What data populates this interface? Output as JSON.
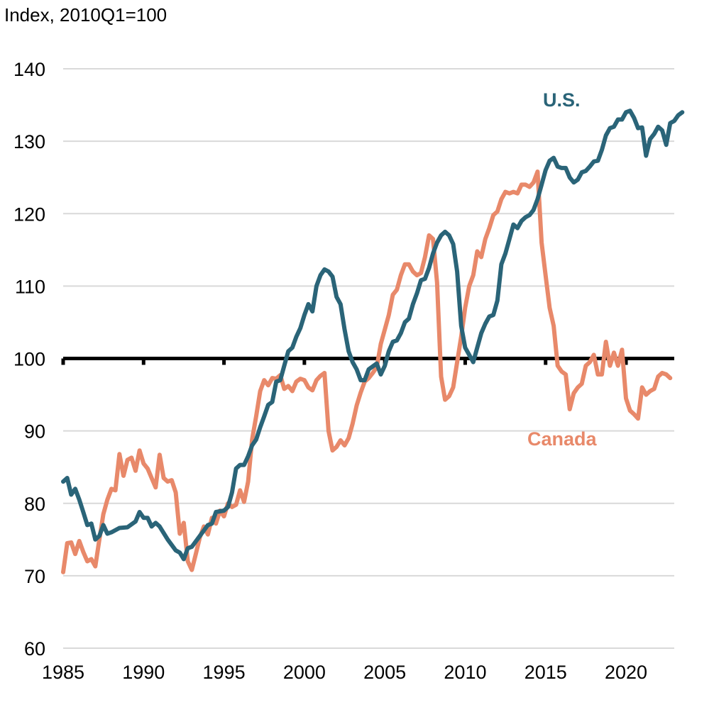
{
  "chart_data": {
    "type": "line",
    "unit_label": "Index, 2010Q1=100",
    "reference_line": 100,
    "xlim": [
      1985,
      2023
    ],
    "ylim": [
      60,
      140
    ],
    "y_ticks": [
      60,
      70,
      80,
      90,
      100,
      110,
      120,
      130,
      140
    ],
    "x_ticks": [
      1985,
      1990,
      1995,
      2000,
      2005,
      2010,
      2015,
      2020
    ],
    "y_tick_labels": [
      "60",
      "70",
      "80",
      "90",
      "100",
      "110",
      "120",
      "130",
      "140"
    ],
    "x_tick_labels": [
      "1985",
      "1990",
      "1995",
      "2000",
      "2005",
      "2010",
      "2015",
      "2020"
    ],
    "grid": "horizontal",
    "series": [
      {
        "name": "U.S.",
        "color": "#2a6478",
        "points": [
          [
            1985.0,
            83.0
          ],
          [
            1985.25,
            83.5
          ],
          [
            1985.5,
            81.2
          ],
          [
            1985.75,
            82.0
          ],
          [
            1986.0,
            80.5
          ],
          [
            1986.25,
            78.8
          ],
          [
            1986.5,
            77.0
          ],
          [
            1986.75,
            77.2
          ],
          [
            1987.0,
            75.0
          ],
          [
            1987.25,
            75.5
          ],
          [
            1987.5,
            77.0
          ],
          [
            1987.75,
            75.8
          ],
          [
            1988.0,
            76.0
          ],
          [
            1988.5,
            76.6
          ],
          [
            1989.0,
            76.7
          ],
          [
            1989.5,
            77.5
          ],
          [
            1989.75,
            78.8
          ],
          [
            1990.0,
            78.0
          ],
          [
            1990.25,
            78.0
          ],
          [
            1990.5,
            76.8
          ],
          [
            1990.75,
            77.3
          ],
          [
            1991.0,
            76.8
          ],
          [
            1991.5,
            75.0
          ],
          [
            1992.0,
            73.5
          ],
          [
            1992.25,
            73.2
          ],
          [
            1992.5,
            72.3
          ],
          [
            1992.75,
            73.8
          ],
          [
            1993.0,
            74.0
          ],
          [
            1993.5,
            75.5
          ],
          [
            1994.0,
            77.0
          ],
          [
            1994.25,
            77.2
          ],
          [
            1994.5,
            78.8
          ],
          [
            1995.0,
            79.0
          ],
          [
            1995.25,
            79.5
          ],
          [
            1995.5,
            81.5
          ],
          [
            1995.75,
            84.8
          ],
          [
            1996.0,
            85.3
          ],
          [
            1996.25,
            85.3
          ],
          [
            1996.5,
            86.5
          ],
          [
            1996.75,
            88.0
          ],
          [
            1997.0,
            88.8
          ],
          [
            1997.25,
            90.5
          ],
          [
            1997.5,
            92.0
          ],
          [
            1997.75,
            93.6
          ],
          [
            1998.0,
            94.0
          ],
          [
            1998.25,
            96.8
          ],
          [
            1998.5,
            97.0
          ],
          [
            1998.75,
            99.0
          ],
          [
            1999.0,
            101.0
          ],
          [
            1999.25,
            101.5
          ],
          [
            1999.5,
            103.0
          ],
          [
            1999.75,
            104.2
          ],
          [
            2000.0,
            106.0
          ],
          [
            2000.25,
            107.5
          ],
          [
            2000.5,
            106.5
          ],
          [
            2000.75,
            110.0
          ],
          [
            2001.0,
            111.5
          ],
          [
            2001.25,
            112.3
          ],
          [
            2001.5,
            112.0
          ],
          [
            2001.75,
            111.3
          ],
          [
            2002.0,
            108.5
          ],
          [
            2002.25,
            107.5
          ],
          [
            2002.5,
            104.0
          ],
          [
            2002.75,
            101.0
          ],
          [
            2003.0,
            99.5
          ],
          [
            2003.25,
            98.5
          ],
          [
            2003.5,
            97.0
          ],
          [
            2003.75,
            97.0
          ],
          [
            2004.0,
            98.5
          ],
          [
            2004.5,
            99.3
          ],
          [
            2004.75,
            97.8
          ],
          [
            2005.0,
            99.0
          ],
          [
            2005.25,
            101.0
          ],
          [
            2005.5,
            102.3
          ],
          [
            2005.75,
            102.5
          ],
          [
            2006.0,
            103.5
          ],
          [
            2006.25,
            105.0
          ],
          [
            2006.5,
            105.5
          ],
          [
            2006.75,
            107.5
          ],
          [
            2007.0,
            109.0
          ],
          [
            2007.25,
            110.8
          ],
          [
            2007.5,
            111.0
          ],
          [
            2007.75,
            112.5
          ],
          [
            2008.0,
            114.5
          ],
          [
            2008.25,
            116.0
          ],
          [
            2008.5,
            117.0
          ],
          [
            2008.75,
            117.5
          ],
          [
            2009.0,
            117.0
          ],
          [
            2009.25,
            115.8
          ],
          [
            2009.5,
            112.0
          ],
          [
            2009.75,
            104.5
          ],
          [
            2010.0,
            101.5
          ],
          [
            2010.25,
            100.5
          ],
          [
            2010.5,
            99.5
          ],
          [
            2010.75,
            101.5
          ],
          [
            2011.0,
            103.5
          ],
          [
            2011.25,
            104.8
          ],
          [
            2011.5,
            105.8
          ],
          [
            2011.75,
            106.0
          ],
          [
            2012.0,
            108.0
          ],
          [
            2012.25,
            113.0
          ],
          [
            2012.5,
            114.5
          ],
          [
            2012.75,
            116.5
          ],
          [
            2013.0,
            118.5
          ],
          [
            2013.25,
            118.0
          ],
          [
            2013.5,
            119.0
          ],
          [
            2013.75,
            119.5
          ],
          [
            2014.0,
            119.8
          ],
          [
            2014.25,
            120.5
          ],
          [
            2014.5,
            122.0
          ],
          [
            2014.75,
            124.0
          ],
          [
            2015.0,
            126.0
          ],
          [
            2015.25,
            127.3
          ],
          [
            2015.5,
            127.7
          ],
          [
            2015.75,
            126.5
          ],
          [
            2016.0,
            126.3
          ],
          [
            2016.25,
            126.3
          ],
          [
            2016.5,
            125.0
          ],
          [
            2016.75,
            124.3
          ],
          [
            2017.0,
            124.7
          ],
          [
            2017.25,
            125.7
          ],
          [
            2017.5,
            125.9
          ],
          [
            2017.75,
            126.5
          ],
          [
            2018.0,
            127.2
          ],
          [
            2018.25,
            127.3
          ],
          [
            2018.5,
            128.8
          ],
          [
            2018.75,
            130.8
          ],
          [
            2019.0,
            131.8
          ],
          [
            2019.25,
            132.0
          ],
          [
            2019.5,
            133.0
          ],
          [
            2019.75,
            133.0
          ],
          [
            2020.0,
            134.0
          ],
          [
            2020.25,
            134.2
          ],
          [
            2020.5,
            133.2
          ],
          [
            2020.75,
            131.8
          ],
          [
            2021.0,
            131.9
          ],
          [
            2021.25,
            128.0
          ],
          [
            2021.5,
            130.3
          ],
          [
            2021.75,
            131.0
          ],
          [
            2022.0,
            132.0
          ],
          [
            2022.25,
            131.5
          ],
          [
            2022.5,
            129.5
          ],
          [
            2022.75,
            132.5
          ],
          [
            2023.0,
            132.8
          ],
          [
            2023.25,
            133.6
          ],
          [
            2023.5,
            134.0
          ]
        ]
      },
      {
        "name": "Canada",
        "color": "#e8896a",
        "points": [
          [
            1985.0,
            70.5
          ],
          [
            1985.25,
            74.5
          ],
          [
            1985.5,
            74.6
          ],
          [
            1985.75,
            73.0
          ],
          [
            1986.0,
            74.8
          ],
          [
            1986.25,
            73.3
          ],
          [
            1986.5,
            72.0
          ],
          [
            1986.75,
            72.3
          ],
          [
            1987.0,
            71.3
          ],
          [
            1987.25,
            75.0
          ],
          [
            1987.5,
            78.5
          ],
          [
            1987.75,
            80.5
          ],
          [
            1988.0,
            82.0
          ],
          [
            1988.25,
            81.8
          ],
          [
            1988.5,
            86.8
          ],
          [
            1988.75,
            83.8
          ],
          [
            1989.0,
            86.0
          ],
          [
            1989.25,
            86.3
          ],
          [
            1989.5,
            84.5
          ],
          [
            1989.75,
            87.3
          ],
          [
            1990.0,
            85.5
          ],
          [
            1990.25,
            84.8
          ],
          [
            1990.5,
            83.5
          ],
          [
            1990.75,
            82.2
          ],
          [
            1991.0,
            86.7
          ],
          [
            1991.25,
            83.5
          ],
          [
            1991.5,
            83.0
          ],
          [
            1991.75,
            83.2
          ],
          [
            1992.0,
            81.5
          ],
          [
            1992.25,
            75.8
          ],
          [
            1992.5,
            77.3
          ],
          [
            1992.75,
            72.0
          ],
          [
            1993.0,
            70.8
          ],
          [
            1993.25,
            73.0
          ],
          [
            1993.5,
            75.3
          ],
          [
            1993.75,
            76.8
          ],
          [
            1994.0,
            75.7
          ],
          [
            1994.25,
            78.0
          ],
          [
            1994.5,
            77.2
          ],
          [
            1994.75,
            79.0
          ],
          [
            1995.0,
            78.2
          ],
          [
            1995.25,
            80.0
          ],
          [
            1995.5,
            79.5
          ],
          [
            1995.75,
            79.8
          ],
          [
            1996.0,
            81.8
          ],
          [
            1996.25,
            80.2
          ],
          [
            1996.5,
            83.0
          ],
          [
            1996.75,
            88.8
          ],
          [
            1997.0,
            92.0
          ],
          [
            1997.25,
            95.5
          ],
          [
            1997.5,
            97.0
          ],
          [
            1997.75,
            96.3
          ],
          [
            1998.0,
            97.3
          ],
          [
            1998.25,
            97.2
          ],
          [
            1998.5,
            97.7
          ],
          [
            1998.75,
            95.8
          ],
          [
            1999.0,
            96.2
          ],
          [
            1999.25,
            95.5
          ],
          [
            1999.5,
            96.8
          ],
          [
            1999.75,
            97.2
          ],
          [
            2000.0,
            97.0
          ],
          [
            2000.25,
            96.0
          ],
          [
            2000.5,
            95.6
          ],
          [
            2000.75,
            97.0
          ],
          [
            2001.0,
            97.6
          ],
          [
            2001.25,
            98.0
          ],
          [
            2001.5,
            90.0
          ],
          [
            2001.75,
            87.3
          ],
          [
            2002.0,
            87.8
          ],
          [
            2002.25,
            88.7
          ],
          [
            2002.5,
            88.0
          ],
          [
            2002.75,
            89.0
          ],
          [
            2003.0,
            91.0
          ],
          [
            2003.25,
            93.5
          ],
          [
            2003.5,
            95.3
          ],
          [
            2003.75,
            96.8
          ],
          [
            2004.0,
            97.3
          ],
          [
            2004.25,
            98.0
          ],
          [
            2004.5,
            98.8
          ],
          [
            2004.75,
            102.0
          ],
          [
            2005.0,
            104.0
          ],
          [
            2005.25,
            106.0
          ],
          [
            2005.5,
            108.8
          ],
          [
            2005.75,
            109.5
          ],
          [
            2006.0,
            111.5
          ],
          [
            2006.25,
            113.0
          ],
          [
            2006.5,
            113.0
          ],
          [
            2006.75,
            112.0
          ],
          [
            2007.0,
            111.5
          ],
          [
            2007.25,
            111.8
          ],
          [
            2007.5,
            114.0
          ],
          [
            2007.75,
            117.0
          ],
          [
            2008.0,
            116.5
          ],
          [
            2008.25,
            110.5
          ],
          [
            2008.5,
            97.5
          ],
          [
            2008.75,
            94.3
          ],
          [
            2009.0,
            94.8
          ],
          [
            2009.25,
            96.0
          ],
          [
            2009.5,
            99.5
          ],
          [
            2009.75,
            103.0
          ],
          [
            2010.0,
            107.0
          ],
          [
            2010.25,
            110.0
          ],
          [
            2010.5,
            111.5
          ],
          [
            2010.75,
            114.8
          ],
          [
            2011.0,
            114.0
          ],
          [
            2011.25,
            116.5
          ],
          [
            2011.5,
            118.0
          ],
          [
            2011.75,
            119.8
          ],
          [
            2012.0,
            120.3
          ],
          [
            2012.25,
            122.0
          ],
          [
            2012.5,
            123.0
          ],
          [
            2012.75,
            122.8
          ],
          [
            2013.0,
            123.0
          ],
          [
            2013.25,
            122.8
          ],
          [
            2013.5,
            124.0
          ],
          [
            2013.75,
            124.0
          ],
          [
            2014.0,
            123.7
          ],
          [
            2014.25,
            124.3
          ],
          [
            2014.5,
            125.8
          ],
          [
            2014.75,
            116.0
          ],
          [
            2015.0,
            111.5
          ],
          [
            2015.25,
            107.0
          ],
          [
            2015.5,
            104.5
          ],
          [
            2015.75,
            99.0
          ],
          [
            2016.0,
            98.2
          ],
          [
            2016.25,
            97.8
          ],
          [
            2016.5,
            93.0
          ],
          [
            2016.75,
            95.2
          ],
          [
            2017.0,
            96.0
          ],
          [
            2017.25,
            96.5
          ],
          [
            2017.5,
            99.0
          ],
          [
            2017.75,
            99.5
          ],
          [
            2018.0,
            100.5
          ],
          [
            2018.25,
            97.8
          ],
          [
            2018.5,
            97.8
          ],
          [
            2018.75,
            102.3
          ],
          [
            2019.0,
            99.0
          ],
          [
            2019.25,
            100.8
          ],
          [
            2019.5,
            99.0
          ],
          [
            2019.75,
            101.2
          ],
          [
            2020.0,
            94.5
          ],
          [
            2020.25,
            92.8
          ],
          [
            2020.5,
            92.3
          ],
          [
            2020.75,
            91.7
          ],
          [
            2021.0,
            96.0
          ],
          [
            2021.25,
            95.0
          ],
          [
            2021.5,
            95.5
          ],
          [
            2021.75,
            95.8
          ],
          [
            2022.0,
            97.5
          ],
          [
            2022.25,
            98.0
          ],
          [
            2022.5,
            97.8
          ],
          [
            2022.75,
            97.3
          ]
        ]
      }
    ]
  }
}
